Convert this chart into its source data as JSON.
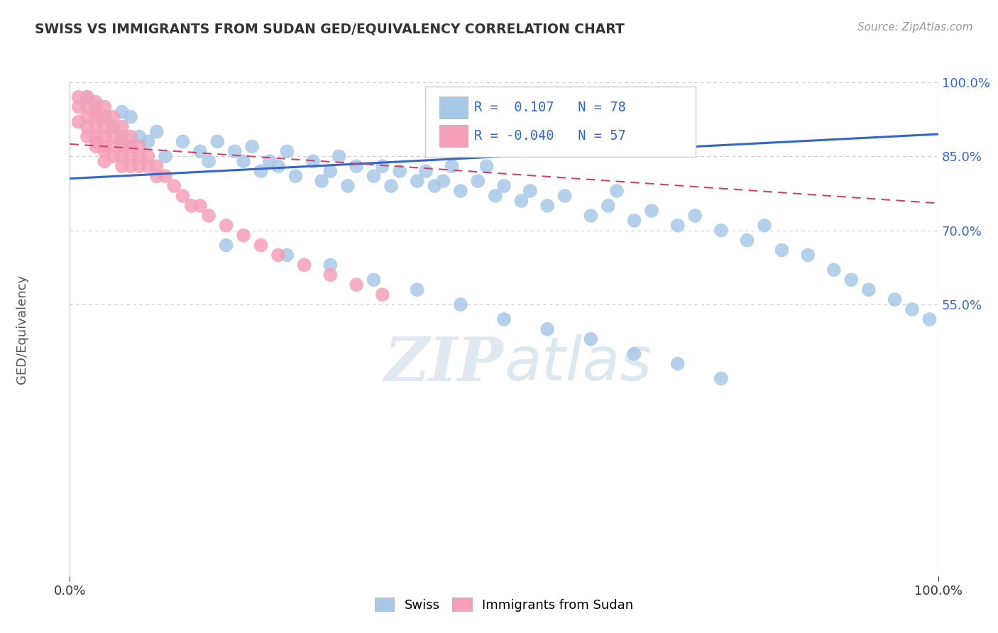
{
  "title": "SWISS VS IMMIGRANTS FROM SUDAN GED/EQUIVALENCY CORRELATION CHART",
  "source": "Source: ZipAtlas.com",
  "ylabel": "GED/Equivalency",
  "xlim": [
    0.0,
    1.0
  ],
  "ylim": [
    0.0,
    1.0
  ],
  "ytick_positions": [
    0.55,
    0.7,
    0.85,
    1.0
  ],
  "ytick_labels": [
    "55.0%",
    "70.0%",
    "85.0%",
    "100.0%"
  ],
  "swiss_color": "#a8c8e8",
  "sudan_color": "#f4a0b8",
  "swiss_R": 0.107,
  "swiss_N": 78,
  "sudan_R": -0.04,
  "sudan_N": 57,
  "swiss_line_color": "#3366cc",
  "sudan_line_color": "#cc4466",
  "grid_color": "#cccccc",
  "background_color": "#ffffff",
  "swiss_line_start_y": 0.805,
  "swiss_line_end_y": 0.895,
  "sudan_line_start_y": 0.875,
  "sudan_line_end_y": 0.755,
  "swiss_scatter_x": [
    0.02,
    0.03,
    0.04,
    0.05,
    0.06,
    0.06,
    0.07,
    0.07,
    0.08,
    0.09,
    0.1,
    0.11,
    0.13,
    0.15,
    0.16,
    0.17,
    0.19,
    0.2,
    0.21,
    0.22,
    0.23,
    0.24,
    0.25,
    0.26,
    0.28,
    0.29,
    0.3,
    0.31,
    0.32,
    0.33,
    0.35,
    0.36,
    0.37,
    0.38,
    0.4,
    0.41,
    0.42,
    0.43,
    0.44,
    0.45,
    0.47,
    0.48,
    0.49,
    0.5,
    0.52,
    0.53,
    0.55,
    0.57,
    0.6,
    0.62,
    0.63,
    0.65,
    0.67,
    0.7,
    0.72,
    0.75,
    0.78,
    0.8,
    0.82,
    0.85,
    0.88,
    0.9,
    0.92,
    0.95,
    0.97,
    0.99,
    0.18,
    0.25,
    0.3,
    0.35,
    0.4,
    0.45,
    0.5,
    0.55,
    0.6,
    0.65,
    0.7,
    0.75
  ],
  "swiss_scatter_y": [
    0.97,
    0.95,
    0.93,
    0.91,
    0.94,
    0.88,
    0.93,
    0.87,
    0.89,
    0.88,
    0.9,
    0.85,
    0.88,
    0.86,
    0.84,
    0.88,
    0.86,
    0.84,
    0.87,
    0.82,
    0.84,
    0.83,
    0.86,
    0.81,
    0.84,
    0.8,
    0.82,
    0.85,
    0.79,
    0.83,
    0.81,
    0.83,
    0.79,
    0.82,
    0.8,
    0.82,
    0.79,
    0.8,
    0.83,
    0.78,
    0.8,
    0.83,
    0.77,
    0.79,
    0.76,
    0.78,
    0.75,
    0.77,
    0.73,
    0.75,
    0.78,
    0.72,
    0.74,
    0.71,
    0.73,
    0.7,
    0.68,
    0.71,
    0.66,
    0.65,
    0.62,
    0.6,
    0.58,
    0.56,
    0.54,
    0.52,
    0.67,
    0.65,
    0.63,
    0.6,
    0.58,
    0.55,
    0.52,
    0.5,
    0.48,
    0.45,
    0.43,
    0.4
  ],
  "sudan_scatter_x": [
    0.01,
    0.01,
    0.01,
    0.02,
    0.02,
    0.02,
    0.02,
    0.02,
    0.03,
    0.03,
    0.03,
    0.03,
    0.03,
    0.03,
    0.03,
    0.04,
    0.04,
    0.04,
    0.04,
    0.04,
    0.04,
    0.04,
    0.05,
    0.05,
    0.05,
    0.05,
    0.05,
    0.06,
    0.06,
    0.06,
    0.06,
    0.06,
    0.07,
    0.07,
    0.07,
    0.07,
    0.08,
    0.08,
    0.08,
    0.09,
    0.09,
    0.1,
    0.1,
    0.11,
    0.12,
    0.13,
    0.14,
    0.15,
    0.16,
    0.18,
    0.2,
    0.22,
    0.24,
    0.27,
    0.3,
    0.33,
    0.36
  ],
  "sudan_scatter_y": [
    0.97,
    0.95,
    0.92,
    0.97,
    0.95,
    0.93,
    0.91,
    0.89,
    0.96,
    0.94,
    0.93,
    0.91,
    0.89,
    0.88,
    0.87,
    0.95,
    0.93,
    0.91,
    0.89,
    0.87,
    0.86,
    0.84,
    0.93,
    0.91,
    0.89,
    0.87,
    0.85,
    0.91,
    0.89,
    0.87,
    0.85,
    0.83,
    0.89,
    0.87,
    0.85,
    0.83,
    0.87,
    0.85,
    0.83,
    0.85,
    0.83,
    0.83,
    0.81,
    0.81,
    0.79,
    0.77,
    0.75,
    0.75,
    0.73,
    0.71,
    0.69,
    0.67,
    0.65,
    0.63,
    0.61,
    0.59,
    0.57
  ]
}
